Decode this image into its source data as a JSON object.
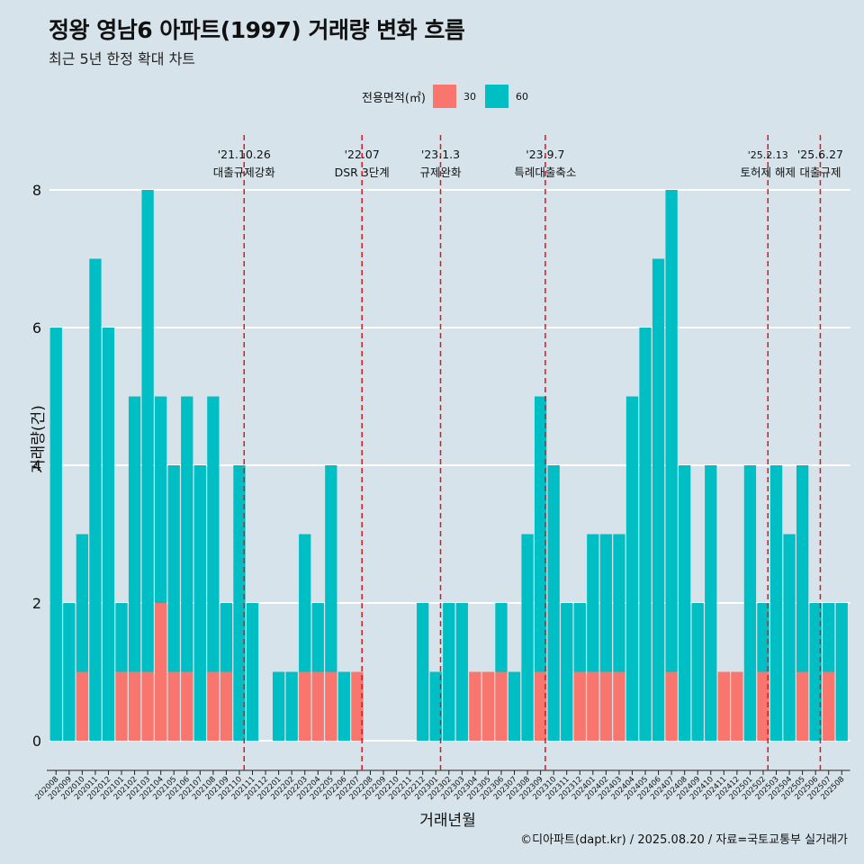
{
  "header": {
    "title": "정왕 영남6 아파트(1997) 거래량 변화 흐름",
    "subtitle": "최근 5년 한정 확대 차트"
  },
  "legend": {
    "title": "전용면적(㎡)",
    "items": [
      {
        "label": "30",
        "color": "#F8766D"
      },
      {
        "label": "60",
        "color": "#00BFC4"
      }
    ]
  },
  "caption": "©디아파트(dapt.kr) / 2025.08.20 / 자료=국토교통부 실거래가",
  "chart_data": {
    "type": "bar",
    "stacked": true,
    "xlabel": "거래년월",
    "ylabel": "거래량(건)",
    "ylim": [
      0,
      8
    ],
    "yticks": [
      0,
      2,
      4,
      6,
      8
    ],
    "legend_position": "top",
    "grid": true,
    "categories": [
      "202008",
      "202009",
      "202010",
      "202011",
      "202012",
      "202101",
      "202102",
      "202103",
      "202104",
      "202105",
      "202106",
      "202107",
      "202108",
      "202109",
      "202110",
      "202111",
      "202112",
      "202201",
      "202202",
      "202203",
      "202204",
      "202205",
      "202206",
      "202207",
      "202208",
      "202209",
      "202210",
      "202211",
      "202212",
      "202301",
      "202302",
      "202303",
      "202304",
      "202305",
      "202306",
      "202307",
      "202308",
      "202309",
      "202310",
      "202311",
      "202312",
      "202401",
      "202402",
      "202403",
      "202404",
      "202405",
      "202406",
      "202407",
      "202408",
      "202409",
      "202410",
      "202411",
      "202412",
      "202501",
      "202502",
      "202503",
      "202504",
      "202505",
      "202506",
      "202507",
      "202508"
    ],
    "series": [
      {
        "name": "30",
        "color": "#F8766D",
        "values": [
          0,
          0,
          1,
          0,
          0,
          1,
          1,
          1,
          2,
          1,
          1,
          0,
          1,
          1,
          0,
          0,
          0,
          0,
          0,
          1,
          1,
          1,
          0,
          1,
          0,
          0,
          0,
          0,
          0,
          0,
          0,
          0,
          1,
          1,
          1,
          0,
          0,
          1,
          0,
          0,
          1,
          1,
          1,
          1,
          0,
          0,
          0,
          1,
          0,
          0,
          0,
          1,
          1,
          0,
          1,
          0,
          0,
          1,
          0,
          1,
          0
        ]
      },
      {
        "name": "60",
        "color": "#00BFC4",
        "values": [
          6,
          2,
          2,
          7,
          6,
          1,
          4,
          7,
          3,
          3,
          4,
          4,
          4,
          1,
          4,
          2,
          0,
          1,
          1,
          2,
          1,
          3,
          1,
          0,
          0,
          0,
          0,
          0,
          2,
          1,
          2,
          2,
          0,
          0,
          1,
          1,
          3,
          4,
          4,
          2,
          1,
          2,
          2,
          2,
          5,
          6,
          7,
          7,
          4,
          2,
          4,
          0,
          0,
          4,
          1,
          4,
          3,
          3,
          2,
          1,
          2
        ]
      }
    ],
    "annotations": [
      {
        "after": "202110",
        "label_top": "'21.10.26",
        "label_bottom": "대출규제강화"
      },
      {
        "after": "202207",
        "label_top": "'22.07",
        "label_bottom": "DSR 3단계"
      },
      {
        "after": "202301",
        "label_top": "'23.1.3",
        "label_bottom": "규제완화"
      },
      {
        "after": "202309",
        "label_top": "'23.9.7",
        "label_bottom": "특례대출축소"
      },
      {
        "after": "202502",
        "label_top": "'25.2.13",
        "label_bottom": "토허제 해제"
      },
      {
        "after": "202506",
        "label_top": "'25.6.27",
        "label_bottom": "대출규제"
      }
    ]
  }
}
